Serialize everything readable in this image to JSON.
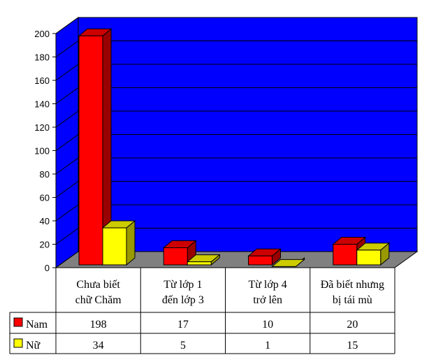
{
  "chart_data": {
    "type": "bar",
    "categories": [
      [
        "Chưa biết",
        "chữ Chăm"
      ],
      [
        "Từ lớp 1",
        "đến lớp 3"
      ],
      [
        "Từ lớp 4",
        "trở lên"
      ],
      [
        "Đã biết nhưng",
        "bị tái mù"
      ]
    ],
    "series": [
      {
        "name": "Nam",
        "values": [
          198,
          17,
          10,
          20
        ],
        "color": "#ff0000",
        "side_color": "#990000",
        "top_color": "#cc0000"
      },
      {
        "name": "Nữ",
        "values": [
          34,
          5,
          1,
          15
        ],
        "color": "#ffff00",
        "side_color": "#999900",
        "top_color": "#cccc00"
      }
    ],
    "ylim": [
      0,
      200
    ],
    "yticks": [
      0,
      20,
      40,
      60,
      80,
      100,
      120,
      140,
      160,
      180,
      200
    ],
    "grid": true,
    "wall_color": "#0000ff",
    "floor_color": "#808080",
    "legend": "data-table"
  }
}
